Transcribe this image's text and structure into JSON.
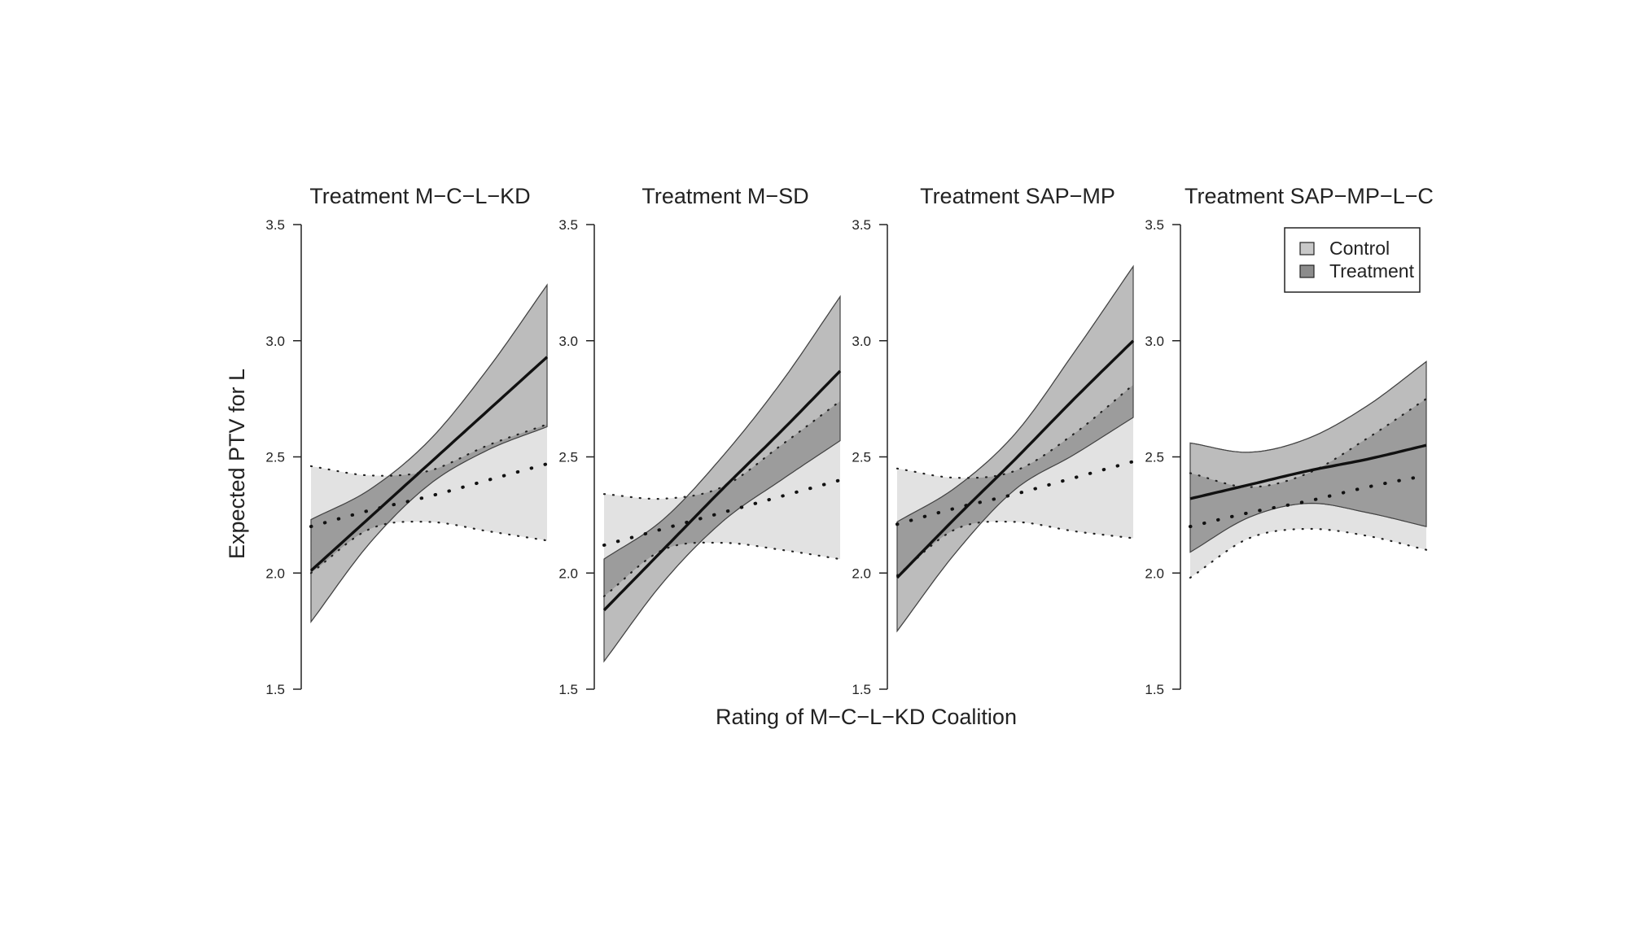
{
  "figure": {
    "ylabel": "Expected PTV for L",
    "xlabel": "Rating of M−C−L−KD Coalition"
  },
  "legend": {
    "items": [
      {
        "label": "Control",
        "color": "#c8c8c8"
      },
      {
        "label": "Treatment",
        "color": "#8c8c8c"
      }
    ],
    "placement": "top-right of last panel"
  },
  "colors": {
    "control_band": "#e2e2e2",
    "treatment_band": "#bcbcbc",
    "overlap_band": "#9c9c9c",
    "line": "#111111"
  },
  "chart_data": [
    {
      "type": "line",
      "title": "Treatment M−C−L−KD",
      "ylim": [
        1.5,
        3.5
      ],
      "yticks": [
        "1.5",
        "2.0",
        "2.5",
        "3.0",
        "3.5"
      ],
      "x": [
        0,
        0.25,
        0.5,
        0.75,
        1
      ],
      "series": [
        {
          "name": "Control",
          "style": "dotted",
          "mean": [
            2.2,
            2.27,
            2.33,
            2.4,
            2.47
          ],
          "lower": [
            2.0,
            2.19,
            2.22,
            2.18,
            2.14
          ],
          "upper": [
            2.46,
            2.42,
            2.44,
            2.55,
            2.64
          ]
        },
        {
          "name": "Treatment",
          "style": "solid",
          "mean": [
            2.01,
            2.24,
            2.47,
            2.7,
            2.93
          ],
          "lower": [
            1.79,
            2.13,
            2.38,
            2.53,
            2.63
          ],
          "upper": [
            2.23,
            2.36,
            2.57,
            2.88,
            3.24
          ]
        }
      ]
    },
    {
      "type": "line",
      "title": "Treatment M−SD",
      "ylim": [
        1.5,
        3.5
      ],
      "yticks": [
        "1.5",
        "2.0",
        "2.5",
        "3.0",
        "3.5"
      ],
      "x": [
        0,
        0.25,
        0.5,
        0.75,
        1
      ],
      "series": [
        {
          "name": "Control",
          "style": "dotted",
          "mean": [
            2.12,
            2.19,
            2.26,
            2.33,
            2.4
          ],
          "lower": [
            1.9,
            2.1,
            2.13,
            2.1,
            2.06
          ],
          "upper": [
            2.34,
            2.32,
            2.37,
            2.55,
            2.74
          ]
        },
        {
          "name": "Treatment",
          "style": "solid",
          "mean": [
            1.84,
            2.1,
            2.36,
            2.61,
            2.87
          ],
          "lower": [
            1.62,
            1.96,
            2.22,
            2.4,
            2.57
          ],
          "upper": [
            2.06,
            2.23,
            2.5,
            2.82,
            3.19
          ]
        }
      ]
    },
    {
      "type": "line",
      "title": "Treatment SAP−MP",
      "ylim": [
        1.5,
        3.5
      ],
      "yticks": [
        "1.5",
        "2.0",
        "2.5",
        "3.0",
        "3.5"
      ],
      "x": [
        0,
        0.25,
        0.5,
        0.75,
        1
      ],
      "series": [
        {
          "name": "Control",
          "style": "dotted",
          "mean": [
            2.21,
            2.28,
            2.34,
            2.41,
            2.48
          ],
          "lower": [
            1.99,
            2.19,
            2.22,
            2.18,
            2.15
          ],
          "upper": [
            2.45,
            2.41,
            2.44,
            2.6,
            2.81
          ]
        },
        {
          "name": "Treatment",
          "style": "solid",
          "mean": [
            1.98,
            2.24,
            2.49,
            2.75,
            3.0
          ],
          "lower": [
            1.75,
            2.09,
            2.36,
            2.51,
            2.67
          ],
          "upper": [
            2.22,
            2.37,
            2.6,
            2.95,
            3.32
          ]
        }
      ]
    },
    {
      "type": "line",
      "title": "Treatment SAP−MP−L−C",
      "ylim": [
        1.5,
        3.5
      ],
      "yticks": [
        "1.5",
        "2.0",
        "2.5",
        "3.0",
        "3.5"
      ],
      "x": [
        0,
        0.25,
        0.5,
        0.75,
        1
      ],
      "series": [
        {
          "name": "Control",
          "style": "dotted",
          "mean": [
            2.2,
            2.26,
            2.31,
            2.37,
            2.42
          ],
          "lower": [
            1.98,
            2.15,
            2.19,
            2.16,
            2.1
          ],
          "upper": [
            2.43,
            2.37,
            2.43,
            2.58,
            2.75
          ]
        },
        {
          "name": "Treatment",
          "style": "solid",
          "mean": [
            2.32,
            2.38,
            2.44,
            2.49,
            2.55
          ],
          "lower": [
            2.09,
            2.24,
            2.3,
            2.26,
            2.2
          ],
          "upper": [
            2.56,
            2.52,
            2.58,
            2.72,
            2.91
          ]
        }
      ]
    }
  ]
}
